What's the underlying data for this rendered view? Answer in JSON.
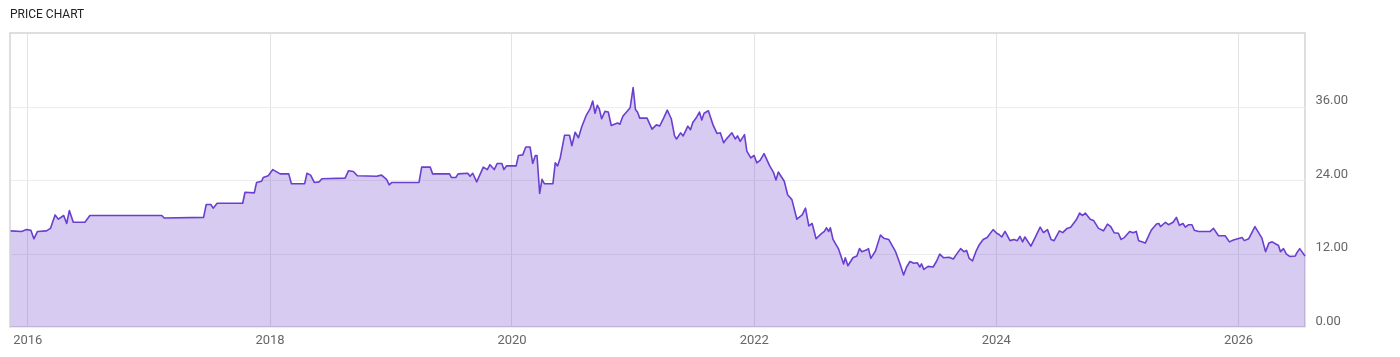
{
  "chart_data": {
    "type": "area",
    "title": "PRICE CHART",
    "x": [
      "2015-11-12",
      "2015-12-15",
      "2015-12-30",
      "2016-01-12",
      "2016-01-21",
      "2016-02-01",
      "2016-02-28",
      "2016-03-11",
      "2016-03-25",
      "2016-04-04",
      "2016-04-20",
      "2016-04-29",
      "2016-05-07",
      "2016-05-19",
      "2016-06-23",
      "2016-07-08",
      "2017-02-10",
      "2017-02-17",
      "2017-06-16",
      "2017-06-24",
      "2017-07-08",
      "2017-07-15",
      "2017-07-27",
      "2017-10-12",
      "2017-10-19",
      "2017-11-16",
      "2017-11-23",
      "2017-12-08",
      "2017-12-13",
      "2017-12-28",
      "2018-01-11",
      "2018-02-02",
      "2018-02-28",
      "2018-03-08",
      "2018-04-17",
      "2018-04-24",
      "2018-05-05",
      "2018-05-16",
      "2018-05-31",
      "2018-06-08",
      "2018-08-17",
      "2018-08-27",
      "2018-09-11",
      "2018-09-23",
      "2018-11-20",
      "2018-12-05",
      "2018-12-20",
      "2018-12-28",
      "2019-01-05",
      "2019-03-28",
      "2019-04-05",
      "2019-05-01",
      "2019-05-08",
      "2019-06-28",
      "2019-07-04",
      "2019-07-17",
      "2019-07-24",
      "2019-08-22",
      "2019-08-29",
      "2019-09-06",
      "2019-09-18",
      "2019-10-08",
      "2019-10-20",
      "2019-10-28",
      "2019-11-10",
      "2019-11-19",
      "2019-12-03",
      "2019-12-09",
      "2019-12-17",
      "2020-01-15",
      "2020-01-22",
      "2020-02-04",
      "2020-02-13",
      "2020-02-26",
      "2020-03-05",
      "2020-03-13",
      "2020-03-18",
      "2020-03-26",
      "2020-04-02",
      "2020-04-09",
      "2020-05-05",
      "2020-05-12",
      "2020-05-19",
      "2020-05-27",
      "2020-06-09",
      "2020-06-24",
      "2020-07-01",
      "2020-07-11",
      "2020-07-21",
      "2020-07-31",
      "2020-08-13",
      "2020-08-25",
      "2020-09-02",
      "2020-09-09",
      "2020-09-16",
      "2020-09-22",
      "2020-09-29",
      "2020-10-09",
      "2020-10-19",
      "2020-10-28",
      "2020-11-16",
      "2020-11-23",
      "2020-12-02",
      "2020-12-24",
      "2021-01-02",
      "2021-01-09",
      "2021-01-15",
      "2021-01-22",
      "2021-02-13",
      "2021-02-28",
      "2021-03-13",
      "2021-03-23",
      "2021-04-04",
      "2021-04-15",
      "2021-04-27",
      "2021-05-07",
      "2021-05-13",
      "2021-05-25",
      "2021-06-02",
      "2021-06-16",
      "2021-06-24",
      "2021-07-01",
      "2021-07-13",
      "2021-07-21",
      "2021-07-28",
      "2021-08-04",
      "2021-08-17",
      "2021-08-31",
      "2021-09-12",
      "2021-09-22",
      "2021-10-02",
      "2021-10-12",
      "2021-10-27",
      "2021-11-06",
      "2021-11-13",
      "2021-11-21",
      "2021-12-04",
      "2021-12-11",
      "2021-12-23",
      "2022-01-02",
      "2022-01-10",
      "2022-01-20",
      "2022-02-01",
      "2022-02-18",
      "2022-03-01",
      "2022-03-09",
      "2022-03-16",
      "2022-04-03",
      "2022-04-13",
      "2022-04-26",
      "2022-05-11",
      "2022-05-27",
      "2022-06-06",
      "2022-06-16",
      "2022-06-26",
      "2022-07-08",
      "2022-07-23",
      "2022-08-02",
      "2022-08-08",
      "2022-08-15",
      "2022-08-20",
      "2022-08-28",
      "2022-09-14",
      "2022-09-29",
      "2022-10-04",
      "2022-10-12",
      "2022-10-27",
      "2022-11-08",
      "2022-11-16",
      "2022-11-23",
      "2022-12-08",
      "2022-12-13",
      "2022-12-20",
      "2023-01-03",
      "2023-01-18",
      "2023-01-28",
      "2023-02-12",
      "2023-03-04",
      "2023-03-17",
      "2023-03-29",
      "2023-04-07",
      "2023-04-17",
      "2023-04-29",
      "2023-05-09",
      "2023-05-17",
      "2023-05-22",
      "2023-05-29",
      "2023-06-11",
      "2023-06-26",
      "2023-07-06",
      "2023-07-16",
      "2023-07-28",
      "2023-08-13",
      "2023-08-26",
      "2023-09-05",
      "2023-09-17",
      "2023-09-27",
      "2023-10-05",
      "2023-10-13",
      "2023-10-23",
      "2023-11-02",
      "2023-11-12",
      "2023-11-24",
      "2023-12-06",
      "2023-12-24",
      "2024-01-04",
      "2024-01-11",
      "2024-01-19",
      "2024-01-29",
      "2024-02-13",
      "2024-02-25",
      "2024-03-06",
      "2024-03-14",
      "2024-03-22",
      "2024-03-29",
      "2024-04-16",
      "2024-04-28",
      "2024-05-14",
      "2024-05-24",
      "2024-06-05",
      "2024-06-16",
      "2024-06-25",
      "2024-07-11",
      "2024-07-21",
      "2024-08-03",
      "2024-08-14",
      "2024-08-31",
      "2024-09-10",
      "2024-09-19",
      "2024-09-27",
      "2024-10-12",
      "2024-10-22",
      "2024-11-06",
      "2024-11-21",
      "2024-12-03",
      "2024-12-13",
      "2024-12-23",
      "2025-01-05",
      "2025-01-13",
      "2025-01-23",
      "2025-02-08",
      "2025-02-18",
      "2025-02-28",
      "2025-03-07",
      "2025-03-17",
      "2025-03-27",
      "2025-04-14",
      "2025-04-30",
      "2025-05-07",
      "2025-05-12",
      "2025-05-27",
      "2025-06-05",
      "2025-06-19",
      "2025-06-29",
      "2025-07-08",
      "2025-07-19",
      "2025-07-26",
      "2025-08-05",
      "2025-08-15",
      "2025-08-22",
      "2025-09-04",
      "2025-10-09",
      "2025-10-19",
      "2025-11-03",
      "2025-11-23",
      "2025-12-06",
      "2025-12-18",
      "2026-01-13",
      "2026-01-20",
      "2026-02-02",
      "2026-02-21",
      "2026-03-04",
      "2026-03-14",
      "2026-03-25",
      "2026-04-14",
      "2026-04-04",
      "2026-05-03",
      "2026-05-18",
      "2026-05-09",
      "2026-06-07",
      "2026-05-27",
      "2026-06-23",
      "2026-07-06",
      "2026-06-26",
      "2026-07-22"
    ],
    "series": [
      {
        "color": "#6a3fd0",
        "values": [
          15.7,
          15.6,
          15.9,
          15.8,
          14.4,
          15.6,
          15.7,
          16.1,
          18.3,
          17.6,
          18.2,
          16.9,
          19.0,
          17.1,
          17.1,
          18.2,
          18.2,
          17.8,
          17.9,
          20.0,
          20.0,
          19.4,
          20.2,
          20.2,
          22.0,
          21.9,
          23.6,
          23.8,
          24.4,
          24.7,
          25.7,
          25.0,
          25.0,
          23.4,
          23.4,
          25.1,
          24.8,
          23.6,
          23.7,
          24.2,
          24.3,
          25.5,
          25.4,
          24.7,
          24.6,
          24.8,
          24.1,
          23.2,
          23.6,
          23.6,
          26.1,
          26.1,
          25.0,
          25.0,
          24.4,
          24.4,
          25.0,
          25.1,
          24.6,
          25.1,
          23.7,
          26.1,
          25.7,
          26.5,
          25.7,
          26.7,
          26.7,
          25.7,
          26.3,
          26.3,
          28.0,
          28.1,
          29.4,
          29.4,
          26.7,
          28.0,
          28.0,
          21.8,
          24.1,
          23.4,
          23.4,
          26.8,
          26.3,
          27.6,
          31.3,
          31.3,
          29.6,
          31.8,
          30.9,
          32.7,
          34.5,
          35.6,
          36.9,
          34.9,
          36.2,
          35.6,
          34.0,
          35.2,
          35.1,
          32.9,
          33.3,
          33.1,
          34.4,
          35.8,
          39.1,
          35.5,
          35.1,
          34.1,
          34.1,
          32.3,
          33.0,
          32.8,
          34.1,
          35.4,
          34.0,
          31.2,
          30.7,
          31.7,
          31.2,
          32.8,
          32.2,
          33.4,
          34.3,
          35.1,
          33.8,
          34.9,
          35.3,
          33.0,
          31.6,
          31.7,
          30.1,
          30.8,
          31.7,
          30.7,
          31.2,
          30.3,
          31.4,
          28.7,
          27.6,
          28.0,
          26.8,
          27.2,
          28.3,
          26.3,
          25.3,
          24.0,
          25.3,
          23.8,
          21.6,
          20.8,
          17.6,
          18.3,
          19.4,
          16.5,
          16.9,
          14.4,
          15.2,
          15.6,
          16.2,
          15.6,
          16.2,
          14.3,
          12.7,
          10.3,
          11.3,
          10.0,
          11.3,
          11.6,
          12.8,
          12.3,
          12.6,
          12.8,
          11.2,
          12.4,
          15.0,
          14.5,
          14.3,
          12.4,
          10.5,
          8.5,
          9.8,
          10.7,
          10.4,
          10.5,
          9.8,
          10.3,
          9.4,
          9.9,
          9.8,
          10.7,
          11.9,
          11.3,
          11.4,
          11.1,
          11.9,
          12.8,
          12.3,
          12.5,
          11.2,
          10.8,
          12.3,
          13.4,
          14.3,
          14.6,
          15.9,
          15.3,
          15.1,
          14.7,
          15.6,
          14.1,
          14.3,
          14.1,
          14.8,
          13.9,
          14.7,
          13.2,
          14.5,
          16.3,
          15.4,
          15.9,
          14.3,
          14.1,
          15.7,
          15.4,
          16.1,
          16.3,
          17.5,
          18.6,
          18.2,
          18.6,
          17.6,
          17.4,
          16.1,
          15.7,
          16.8,
          16.4,
          15.4,
          15.3,
          14.3,
          14.6,
          15.6,
          15.4,
          15.6,
          14.1,
          13.9,
          13.7,
          15.8,
          16.8,
          16.9,
          16.4,
          17.1,
          16.7,
          17.1,
          17.9,
          16.6,
          16.9,
          16.3,
          16.7,
          16.7,
          15.8,
          15.6,
          15.6,
          16.1,
          14.9,
          14.9,
          13.9,
          14.2,
          14.6,
          14.1,
          14.4,
          16.4,
          15.4,
          14.5,
          12.3,
          13.9,
          13.7,
          13.3,
          12.8,
          12.3,
          11.5,
          11.9,
          11.6,
          12.8,
          12.0,
          11.6
        ]
      }
    ],
    "xlim": [
      "2015-11-10",
      "2026-07-22"
    ],
    "xticks": [
      "2016",
      "2018",
      "2020",
      "2022",
      "2024",
      "2026"
    ],
    "ylim": [
      0,
      48
    ],
    "yticks": [
      {
        "value": 0,
        "label": "0.00"
      },
      {
        "value": 12,
        "label": "12.00"
      },
      {
        "value": 24,
        "label": "24.00"
      },
      {
        "value": 36,
        "label": "36.00"
      }
    ],
    "grid": true
  }
}
